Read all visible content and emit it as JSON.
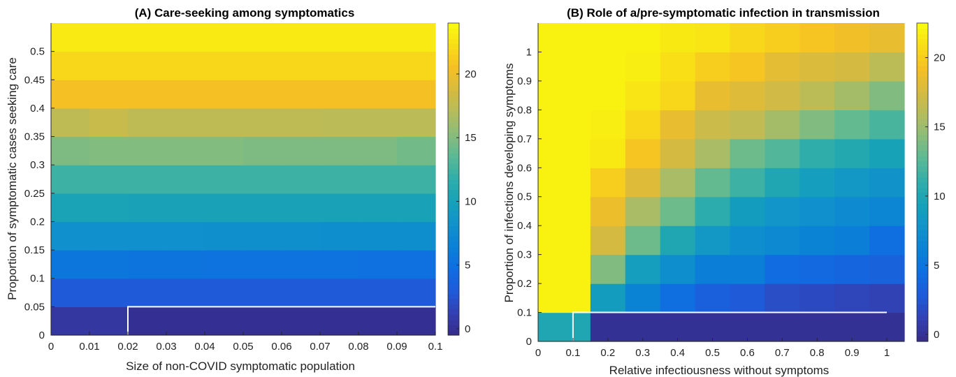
{
  "chart_data": [
    {
      "type": "heatmap",
      "title": "(A) Care-seeking among symptomatics",
      "xlabel": "Size of non-COVID symptomatic population",
      "ylabel": "Proportion of symptomatic cases seeking care",
      "xlim": [
        0,
        0.1
      ],
      "ylim": [
        0,
        0.55
      ],
      "x_ticks": [
        "0",
        "0.01",
        "0.02",
        "0.03",
        "0.04",
        "0.05",
        "0.06",
        "0.07",
        "0.08",
        "0.09",
        "0.1"
      ],
      "y_ticks": [
        "0",
        "0.05",
        "0.1",
        "0.15",
        "0.2",
        "0.25",
        "0.3",
        "0.35",
        "0.4",
        "0.45",
        "0.5"
      ],
      "colorbar": {
        "min": -0.5,
        "max": 24,
        "ticks": [
          "0",
          "5",
          "10",
          "15",
          "20"
        ]
      },
      "contour": "white boundary line at y = 0.05 from x = 0.02 to 0.1",
      "x_edges": [
        0,
        0.01,
        0.02,
        0.03,
        0.04,
        0.05,
        0.06,
        0.07,
        0.08,
        0.09,
        0.1
      ],
      "y_edges": [
        0,
        0.05,
        0.1,
        0.15,
        0.2,
        0.25,
        0.3,
        0.35,
        0.4,
        0.45,
        0.5,
        0.55
      ],
      "values": [
        [
          0.5,
          0.5,
          0.0,
          0.0,
          0.0,
          0.0,
          0.0,
          0.0,
          0.0,
          0.0
        ],
        [
          3.0,
          3.0,
          3.0,
          3.0,
          3.0,
          3.0,
          3.0,
          3.0,
          3.0,
          3.0
        ],
        [
          5.5,
          5.5,
          5.3,
          5.3,
          5.2,
          5.2,
          5.2,
          5.1,
          5.0,
          5.0
        ],
        [
          8.0,
          8.0,
          8.0,
          8.0,
          7.9,
          7.9,
          7.9,
          7.8,
          7.8,
          7.8
        ],
        [
          10.3,
          10.3,
          10.2,
          10.2,
          10.2,
          10.2,
          10.2,
          10.2,
          10.2,
          10.2
        ],
        [
          12.3,
          12.3,
          12.3,
          12.3,
          12.3,
          12.3,
          12.3,
          12.3,
          12.3,
          12.3
        ],
        [
          14.8,
          15.0,
          15.0,
          15.0,
          15.0,
          14.8,
          14.8,
          14.8,
          14.8,
          14.4
        ],
        [
          17.5,
          18.0,
          17.5,
          17.5,
          17.5,
          17.5,
          17.5,
          17.3,
          17.3,
          17.3
        ],
        [
          20.5,
          20.5,
          20.5,
          20.5,
          20.5,
          20.5,
          20.5,
          20.5,
          20.5,
          20.5
        ],
        [
          21.8,
          21.8,
          21.8,
          21.8,
          21.8,
          21.8,
          21.8,
          21.8,
          21.8,
          21.8
        ],
        [
          23.0,
          23.0,
          23.0,
          23.0,
          23.0,
          23.0,
          23.0,
          23.0,
          23.0,
          23.0
        ]
      ]
    },
    {
      "type": "heatmap",
      "title": "(B) Role of a/pre-symptomatic infection in transmission",
      "xlabel": "Relative infectiousness without symptoms",
      "ylabel": "Proportion of infections developing symptoms",
      "xlim": [
        0,
        1.05
      ],
      "ylim": [
        0,
        1.1
      ],
      "x_ticks": [
        "0",
        "0.1",
        "0.2",
        "0.3",
        "0.4",
        "0.5",
        "0.6",
        "0.7",
        "0.8",
        "0.9",
        "1"
      ],
      "y_ticks": [
        "0",
        "0.1",
        "0.2",
        "0.3",
        "0.4",
        "0.5",
        "0.6",
        "0.7",
        "0.8",
        "0.9",
        "1"
      ],
      "colorbar": {
        "min": -0.5,
        "max": 22.5,
        "ticks": [
          "0",
          "5",
          "10",
          "15",
          "20"
        ]
      },
      "contour": "white boundary line at y = 0.1 from x = 0.1 to 1, vertical at x = 0.1",
      "x_edges": [
        0,
        0.15,
        0.25,
        0.35,
        0.45,
        0.55,
        0.65,
        0.75,
        0.85,
        0.95,
        1.05
      ],
      "y_edges": [
        0,
        0.1,
        0.2,
        0.3,
        0.4,
        0.5,
        0.6,
        0.7,
        0.8,
        0.9,
        1.0,
        1.1
      ],
      "values": [
        [
          10.0,
          0.0,
          0.0,
          0.0,
          0.0,
          0.0,
          0.0,
          0.0,
          0.0,
          0.0
        ],
        [
          22.0,
          8.8,
          6.3,
          4.5,
          3.3,
          2.8,
          2.0,
          1.8,
          1.5,
          1.3
        ],
        [
          22.0,
          14.0,
          9.0,
          7.3,
          5.8,
          5.8,
          4.3,
          4.0,
          3.8,
          3.5
        ],
        [
          22.0,
          17.5,
          13.3,
          10.0,
          8.3,
          7.3,
          6.8,
          6.3,
          5.8,
          4.5
        ],
        [
          22.0,
          18.8,
          15.5,
          13.3,
          10.8,
          8.8,
          8.0,
          7.5,
          7.0,
          6.5
        ],
        [
          22.0,
          20.0,
          18.0,
          15.5,
          13.0,
          11.5,
          10.0,
          9.0,
          8.3,
          7.8
        ],
        [
          22.0,
          21.5,
          19.5,
          17.5,
          15.5,
          13.3,
          12.3,
          11.0,
          10.3,
          9.5
        ],
        [
          22.0,
          21.8,
          20.5,
          18.5,
          17.0,
          16.5,
          15.3,
          14.0,
          13.0,
          12.0
        ],
        [
          22.0,
          22.0,
          21.3,
          20.5,
          18.5,
          18.0,
          17.3,
          16.3,
          15.3,
          14.0
        ],
        [
          22.0,
          22.0,
          21.8,
          21.0,
          20.0,
          19.5,
          18.3,
          17.8,
          17.5,
          16.3
        ],
        [
          22.0,
          22.0,
          22.0,
          21.5,
          21.3,
          20.5,
          20.0,
          19.5,
          19.0,
          18.5
        ]
      ]
    }
  ]
}
